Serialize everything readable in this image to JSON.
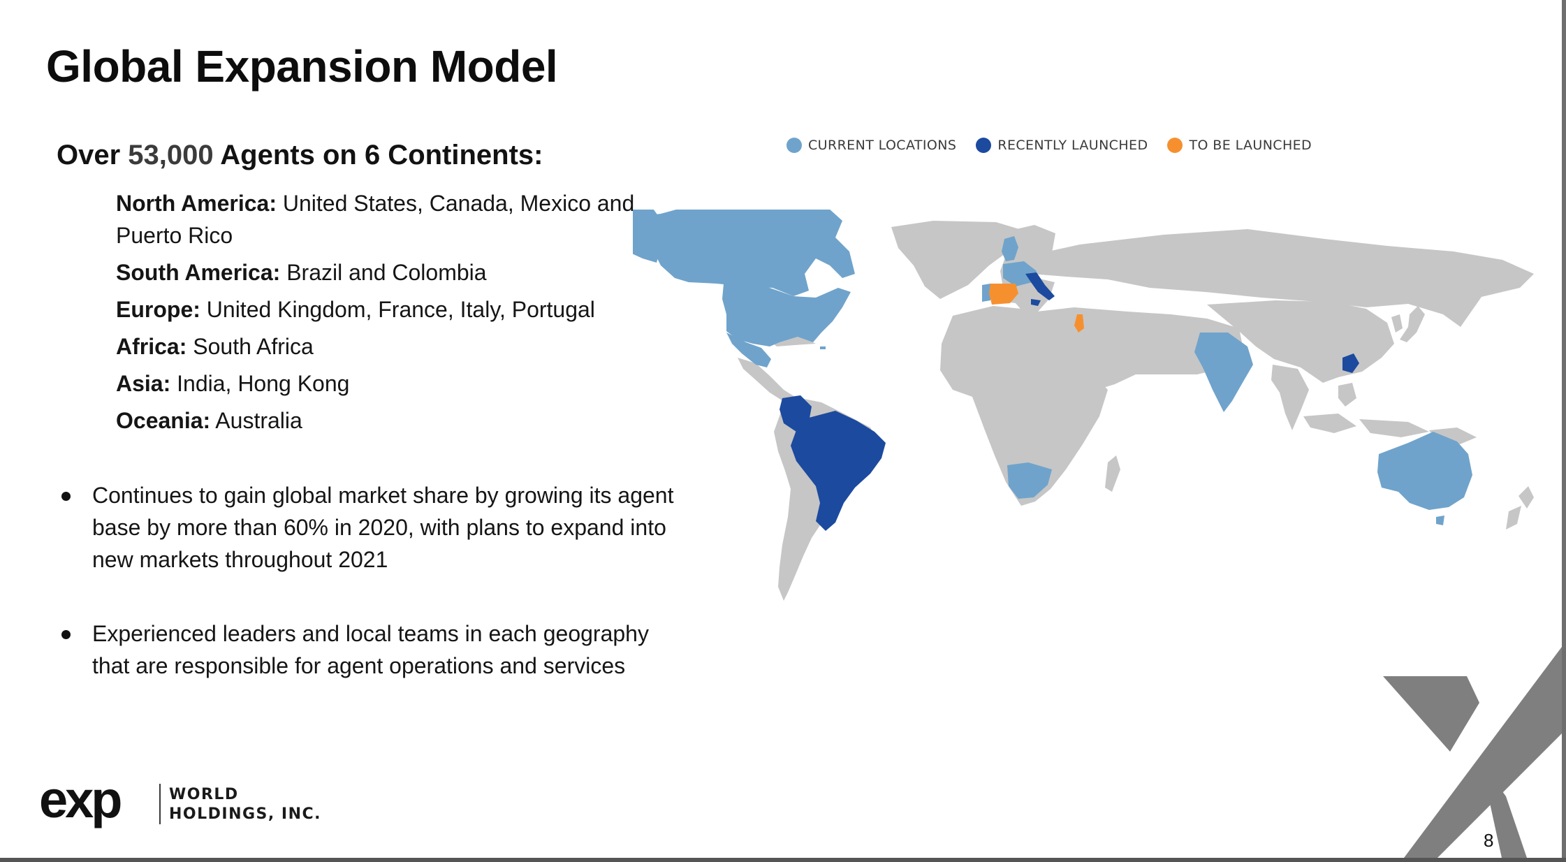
{
  "slide": {
    "title": "Global Expansion Model",
    "subtitle": {
      "prefix": "Over",
      "highlight": "53,000",
      "suffix": "Agents on 6 Continents:"
    },
    "regions": [
      {
        "name": "North America:",
        "countries": "United States, Canada, Mexico and Puerto Rico"
      },
      {
        "name": "South America:",
        "countries": "Brazil and Colombia"
      },
      {
        "name": "Europe:",
        "countries": "United Kingdom, France, Italy, Portugal"
      },
      {
        "name": "Africa:",
        "countries": "South Africa"
      },
      {
        "name": "Asia:",
        "countries": "India, Hong Kong"
      },
      {
        "name": "Oceania:",
        "countries": "Australia"
      }
    ],
    "bullets": [
      "Continues to gain global market share by growing its agent base by more than 60% in 2020, with plans to expand into new markets throughout 2021",
      "Experienced leaders and local teams in each geography that are responsible for agent operations and services"
    ],
    "page_number": "8"
  },
  "legend": [
    {
      "label": "CURRENT LOCATIONS",
      "color": "#6fa3cb"
    },
    {
      "label": "RECENTLY LAUNCHED",
      "color": "#1c4a9f"
    },
    {
      "label": "TO BE LAUNCHED",
      "color": "#f6902f"
    }
  ],
  "map": {
    "land_color": "#c6c6c6",
    "current_locations": [
      "United States",
      "Canada",
      "Mexico",
      "Puerto Rico",
      "United Kingdom",
      "France",
      "Portugal",
      "South Africa",
      "India",
      "Australia"
    ],
    "recently_launched": [
      "Brazil",
      "Colombia",
      "Italy",
      "Hong Kong"
    ],
    "to_be_launched": [
      "Spain",
      "Israel"
    ]
  },
  "logo": {
    "mark": "exp",
    "line1": "WORLD",
    "line2": "HOLDINGS, INC."
  },
  "colors": {
    "current": "#6fa3cb",
    "recent": "#1c4a9f",
    "planned": "#f6902f",
    "accent_gray": "#7f7f7f"
  }
}
